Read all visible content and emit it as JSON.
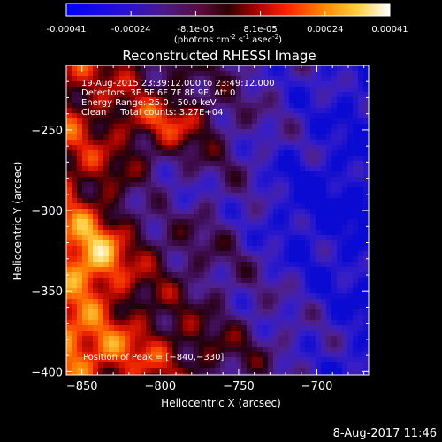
{
  "colorbar": {
    "ticks": [
      "-0.00041",
      "-0.00024",
      "-8.1e-05",
      "8.1e-05",
      "0.00024",
      "0.00041"
    ],
    "units_main": "(photons cm",
    "units_exp1": "-2",
    "units_mid": " s",
    "units_exp2": "-1",
    "units_end": " asec",
    "units_exp3": "-2",
    "units_close": ")",
    "range": [
      -0.00041,
      0.00041
    ],
    "colormap": "rainbow-like: blue-purple-red-orange-yellow-white"
  },
  "chart_data": {
    "type": "heatmap",
    "title": "Reconstructed RHESSI Image",
    "xlabel": "Heliocentric X (arcsec)",
    "ylabel": "Heliocentric Y (arcsec)",
    "xlim": [
      -860,
      -667
    ],
    "ylim": [
      -402,
      -210
    ],
    "x_ticks": [
      -850,
      -800,
      -750,
      -700
    ],
    "y_ticks": [
      -400,
      -350,
      -300,
      -250
    ],
    "x_tick_labels": [
      "−850",
      "−800",
      "−750",
      "−700"
    ],
    "y_tick_labels": [
      "−400",
      "−350",
      "−300",
      "−250"
    ],
    "annotations": [
      "19-Aug-2015 23:39:12.000 to 23:49:12.000",
      "Detectors: 3F 5F 6F 7F 8F 9F, Att 0",
      "Energy Range: 25.0 - 50.0 keV",
      "Clean     Total counts: 3.27E+04"
    ],
    "peak_label": "Position of Peak = [−840,−330]",
    "peak": [
      -840,
      -330
    ]
  },
  "timestamp": "8-Aug-2017 11:46"
}
